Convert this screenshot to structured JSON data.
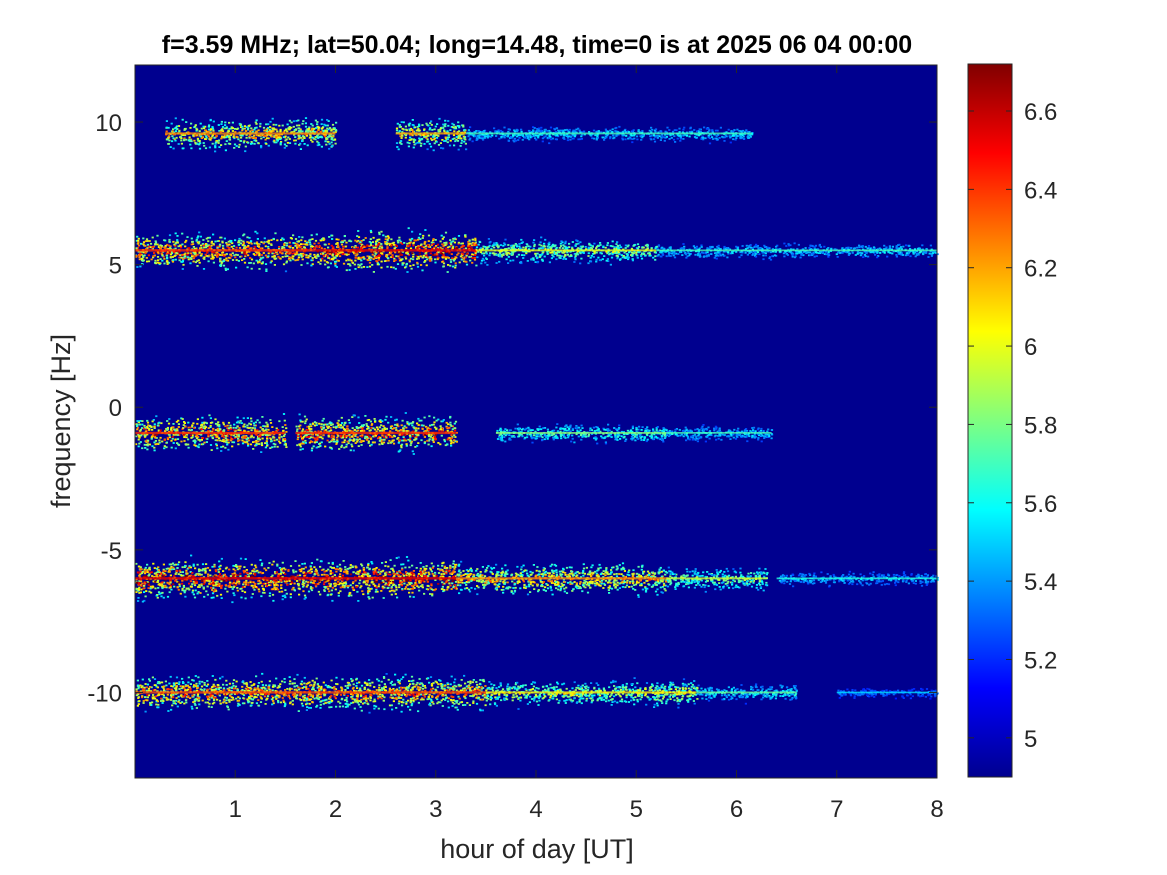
{
  "chart_data": {
    "type": "heatmap",
    "title": "f=3.59 MHz;  lat=50.04; long=14.48, time=0 is at 2025 06 04 00:00",
    "xlabel": "hour of day [UT]",
    "ylabel": "frequency [Hz]",
    "xlim": [
      0,
      8
    ],
    "ylim": [
      -13,
      12
    ],
    "xticks": [
      1,
      2,
      3,
      4,
      5,
      6,
      7,
      8
    ],
    "yticks": [
      -10,
      -5,
      0,
      5,
      10
    ],
    "colormap": "jet",
    "background_color": "#00008f",
    "colorbar": {
      "range": [
        4.9,
        6.72
      ],
      "ticks": [
        5,
        5.2,
        5.4,
        5.6,
        5.8,
        6,
        6.2,
        6.4,
        6.6
      ]
    },
    "traces": [
      {
        "center_hz": 9.6,
        "start_hour": 0.1,
        "end_hour": 6.2,
        "peak_intensity": 6.5,
        "active": [
          [
            0.3,
            2.0,
            0.75
          ],
          [
            2.6,
            3.3,
            0.7
          ],
          [
            3.3,
            6.15,
            0.3
          ]
        ]
      },
      {
        "center_hz": 5.5,
        "start_hour": 0.0,
        "end_hour": 8.0,
        "peak_intensity": 6.7,
        "active": [
          [
            0.0,
            1.8,
            0.9
          ],
          [
            1.8,
            3.4,
            1.0
          ],
          [
            3.4,
            5.2,
            0.55
          ],
          [
            5.2,
            8.0,
            0.3
          ]
        ]
      },
      {
        "center_hz": -0.9,
        "start_hour": 0.0,
        "end_hour": 6.35,
        "peak_intensity": 6.7,
        "active": [
          [
            0.0,
            1.5,
            0.9
          ],
          [
            1.6,
            3.2,
            0.9
          ],
          [
            3.6,
            5.3,
            0.4
          ],
          [
            5.3,
            6.35,
            0.3
          ]
        ]
      },
      {
        "center_hz": -6.0,
        "start_hour": 0.0,
        "end_hour": 8.0,
        "peak_intensity": 6.7,
        "active": [
          [
            0.0,
            1.7,
            1.0
          ],
          [
            1.7,
            3.2,
            1.0
          ],
          [
            3.2,
            5.3,
            0.75
          ],
          [
            5.3,
            6.3,
            0.5
          ],
          [
            6.4,
            8.0,
            0.25
          ]
        ]
      },
      {
        "center_hz": -10.0,
        "start_hour": 0.0,
        "end_hour": 8.0,
        "peak_intensity": 6.6,
        "active": [
          [
            0.0,
            1.8,
            0.85
          ],
          [
            1.8,
            3.5,
            0.85
          ],
          [
            3.5,
            5.6,
            0.6
          ],
          [
            5.6,
            6.6,
            0.35
          ],
          [
            7.0,
            8.0,
            0.15
          ]
        ]
      }
    ]
  }
}
